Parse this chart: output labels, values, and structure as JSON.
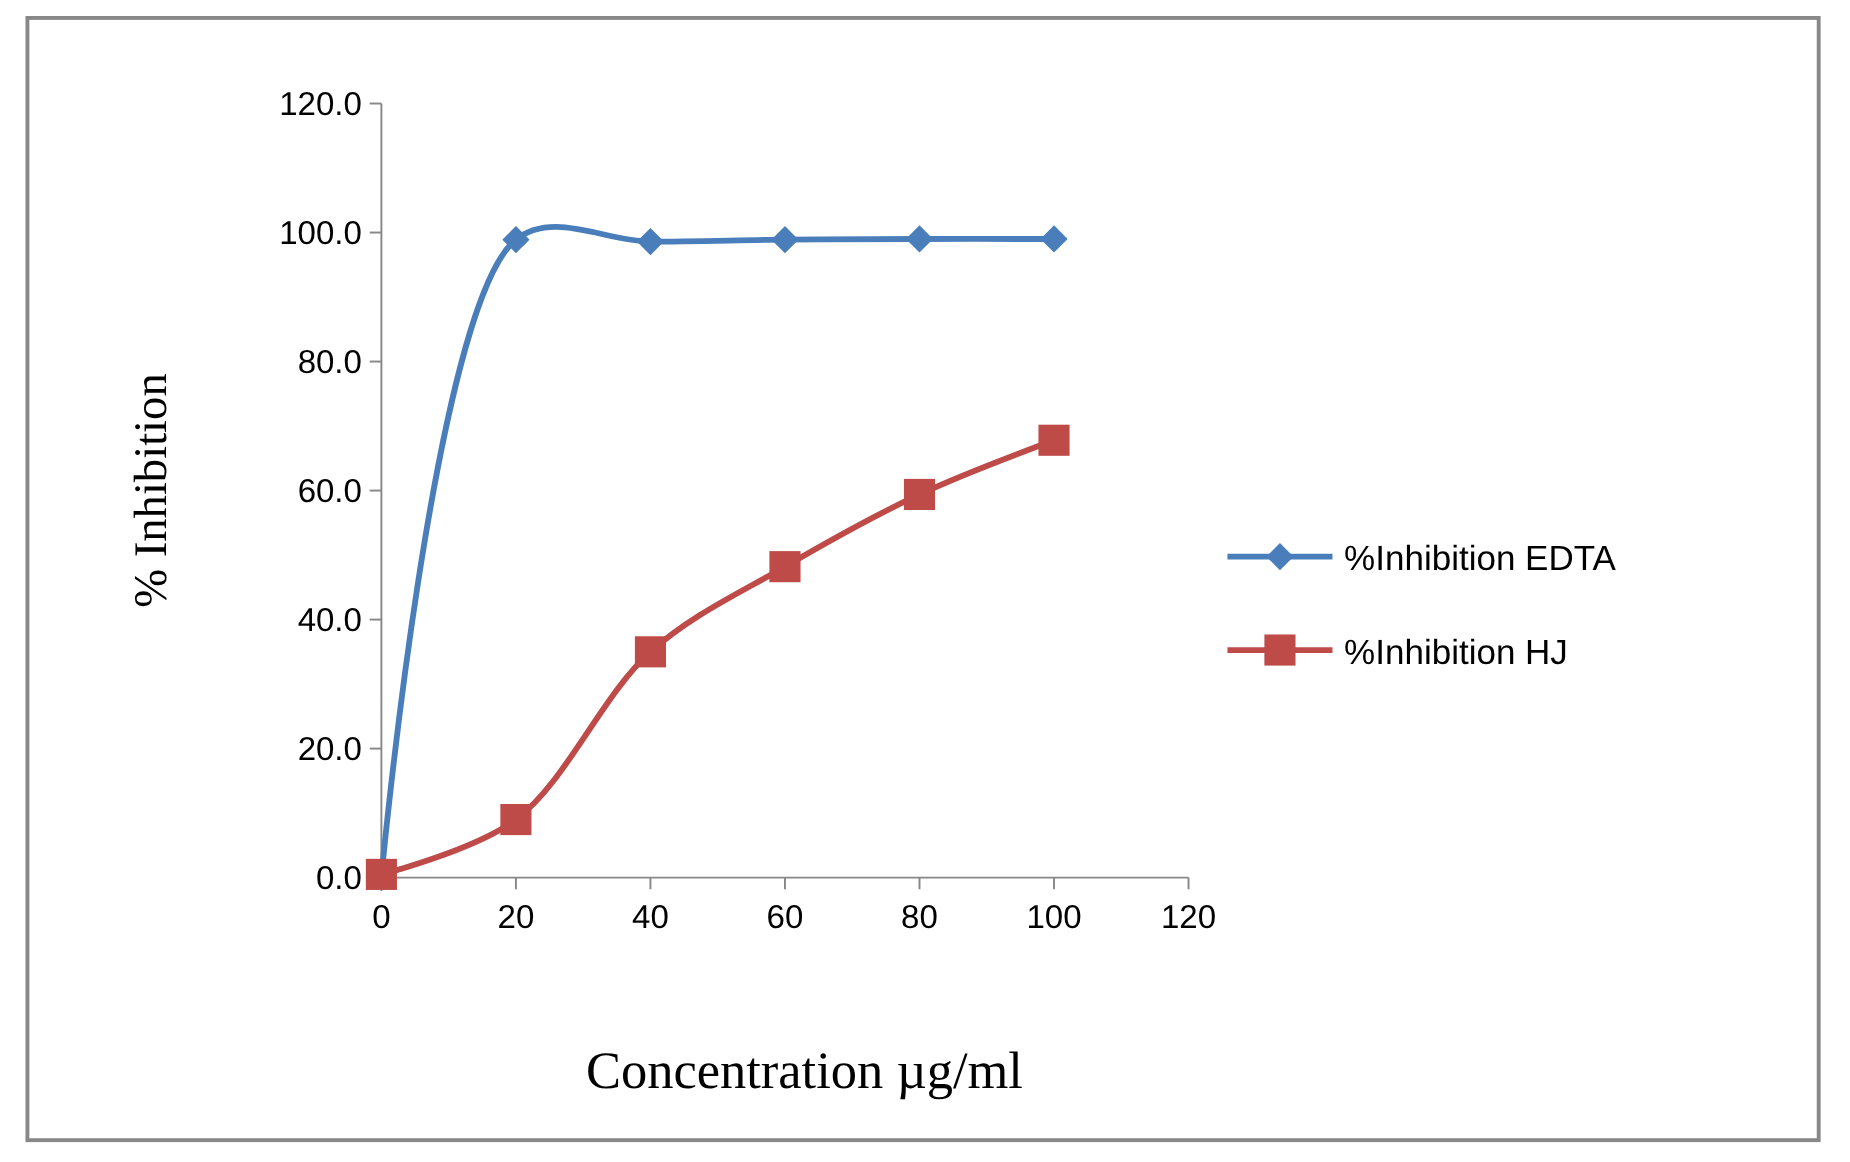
{
  "chart_data": {
    "type": "line",
    "xlabel": "Concentration µg/ml",
    "ylabel": "% Inhibition",
    "x": [
      0,
      20,
      40,
      60,
      80,
      100
    ],
    "series": [
      {
        "name": "%Inhibition  EDTA",
        "color": "#4a7ebb",
        "marker": "diamond",
        "values": [
          0,
          98.9,
          98.6,
          98.9,
          99.0,
          99.0
        ]
      },
      {
        "name": "%Inhibition  HJ",
        "color": "#be4b48",
        "marker": "square",
        "values": [
          0.5,
          9.0,
          35.0,
          48.2,
          59.4,
          67.8
        ]
      }
    ],
    "xlim": [
      0,
      120
    ],
    "xticks": [
      0,
      20,
      40,
      60,
      80,
      100,
      120
    ],
    "ylim": [
      0,
      120
    ],
    "yticks": [
      {
        "value": 0,
        "label": "0.0"
      },
      {
        "value": 20,
        "label": "20.0"
      },
      {
        "value": 40,
        "label": "40.0"
      },
      {
        "value": 60,
        "label": "60.0"
      },
      {
        "value": 80,
        "label": "80.0"
      },
      {
        "value": 100,
        "label": "100.0"
      },
      {
        "value": 120,
        "label": "120.0"
      }
    ],
    "grid": false,
    "legend": "right",
    "line_style": "solid"
  }
}
